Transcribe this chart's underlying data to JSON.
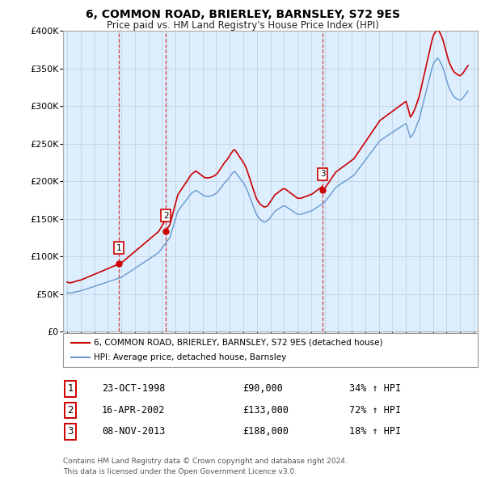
{
  "title": "6, COMMON ROAD, BRIERLEY, BARNSLEY, S72 9ES",
  "subtitle": "Price paid vs. HM Land Registry's House Price Index (HPI)",
  "legend_line1": "6, COMMON ROAD, BRIERLEY, BARNSLEY, S72 9ES (detached house)",
  "legend_line2": "HPI: Average price, detached house, Barnsley",
  "footer1": "Contains HM Land Registry data © Crown copyright and database right 2024.",
  "footer2": "This data is licensed under the Open Government Licence v3.0.",
  "sales": [
    {
      "num": 1,
      "date": "23-OCT-1998",
      "price": 90000,
      "hpi_pct": "34% ↑ HPI",
      "year": 1998.81
    },
    {
      "num": 2,
      "date": "16-APR-2002",
      "price": 133000,
      "hpi_pct": "72% ↑ HPI",
      "year": 2002.29
    },
    {
      "num": 3,
      "date": "08-NOV-2013",
      "price": 188000,
      "hpi_pct": "18% ↑ HPI",
      "year": 2013.85
    }
  ],
  "ylim": [
    0,
    400000
  ],
  "yticks": [
    0,
    50000,
    100000,
    150000,
    200000,
    250000,
    300000,
    350000,
    400000
  ],
  "ytick_labels": [
    "£0",
    "£50K",
    "£100K",
    "£150K",
    "£200K",
    "£250K",
    "£300K",
    "£350K",
    "£400K"
  ],
  "hpi_color": "#6699cc",
  "price_color": "#cc0000",
  "sale_dot_color": "#cc0000",
  "chart_bg_color": "#ddeeff",
  "background_color": "#ffffff",
  "grid_color": "#bbccdd",
  "xticks": [
    1995,
    1996,
    1997,
    1998,
    1999,
    2000,
    2001,
    2002,
    2003,
    2004,
    2005,
    2006,
    2007,
    2008,
    2009,
    2010,
    2011,
    2012,
    2013,
    2014,
    2015,
    2016,
    2017,
    2018,
    2019,
    2020,
    2021,
    2022,
    2023,
    2024,
    2025
  ],
  "xlim": [
    1994.7,
    2025.3
  ],
  "hpi_years": [
    1995.0,
    1995.083,
    1995.167,
    1995.25,
    1995.333,
    1995.417,
    1995.5,
    1995.583,
    1995.667,
    1995.75,
    1995.833,
    1995.917,
    1996.0,
    1996.083,
    1996.167,
    1996.25,
    1996.333,
    1996.417,
    1996.5,
    1996.583,
    1996.667,
    1996.75,
    1996.833,
    1996.917,
    1997.0,
    1997.083,
    1997.167,
    1997.25,
    1997.333,
    1997.417,
    1997.5,
    1997.583,
    1997.667,
    1997.75,
    1997.833,
    1997.917,
    1998.0,
    1998.083,
    1998.167,
    1998.25,
    1998.333,
    1998.417,
    1998.5,
    1998.583,
    1998.667,
    1998.75,
    1998.833,
    1998.917,
    1999.0,
    1999.083,
    1999.167,
    1999.25,
    1999.333,
    1999.417,
    1999.5,
    1999.583,
    1999.667,
    1999.75,
    1999.833,
    1999.917,
    2000.0,
    2000.083,
    2000.167,
    2000.25,
    2000.333,
    2000.417,
    2000.5,
    2000.583,
    2000.667,
    2000.75,
    2000.833,
    2000.917,
    2001.0,
    2001.083,
    2001.167,
    2001.25,
    2001.333,
    2001.417,
    2001.5,
    2001.583,
    2001.667,
    2001.75,
    2001.833,
    2001.917,
    2002.0,
    2002.083,
    2002.167,
    2002.25,
    2002.333,
    2002.417,
    2002.5,
    2002.583,
    2002.667,
    2002.75,
    2002.833,
    2002.917,
    2003.0,
    2003.083,
    2003.167,
    2003.25,
    2003.333,
    2003.417,
    2003.5,
    2003.583,
    2003.667,
    2003.75,
    2003.833,
    2003.917,
    2004.0,
    2004.083,
    2004.167,
    2004.25,
    2004.333,
    2004.417,
    2004.5,
    2004.583,
    2004.667,
    2004.75,
    2004.833,
    2004.917,
    2005.0,
    2005.083,
    2005.167,
    2005.25,
    2005.333,
    2005.417,
    2005.5,
    2005.583,
    2005.667,
    2005.75,
    2005.833,
    2005.917,
    2006.0,
    2006.083,
    2006.167,
    2006.25,
    2006.333,
    2006.417,
    2006.5,
    2006.583,
    2006.667,
    2006.75,
    2006.833,
    2006.917,
    2007.0,
    2007.083,
    2007.167,
    2007.25,
    2007.333,
    2007.417,
    2007.5,
    2007.583,
    2007.667,
    2007.75,
    2007.833,
    2007.917,
    2008.0,
    2008.083,
    2008.167,
    2008.25,
    2008.333,
    2008.417,
    2008.5,
    2008.583,
    2008.667,
    2008.75,
    2008.833,
    2008.917,
    2009.0,
    2009.083,
    2009.167,
    2009.25,
    2009.333,
    2009.417,
    2009.5,
    2009.583,
    2009.667,
    2009.75,
    2009.833,
    2009.917,
    2010.0,
    2010.083,
    2010.167,
    2010.25,
    2010.333,
    2010.417,
    2010.5,
    2010.583,
    2010.667,
    2010.75,
    2010.833,
    2010.917,
    2011.0,
    2011.083,
    2011.167,
    2011.25,
    2011.333,
    2011.417,
    2011.5,
    2011.583,
    2011.667,
    2011.75,
    2011.833,
    2011.917,
    2012.0,
    2012.083,
    2012.167,
    2012.25,
    2012.333,
    2012.417,
    2012.5,
    2012.583,
    2012.667,
    2012.75,
    2012.833,
    2012.917,
    2013.0,
    2013.083,
    2013.167,
    2013.25,
    2013.333,
    2013.417,
    2013.5,
    2013.583,
    2013.667,
    2013.75,
    2013.833,
    2013.917,
    2014.0,
    2014.083,
    2014.167,
    2014.25,
    2014.333,
    2014.417,
    2014.5,
    2014.583,
    2014.667,
    2014.75,
    2014.833,
    2014.917,
    2015.0,
    2015.083,
    2015.167,
    2015.25,
    2015.333,
    2015.417,
    2015.5,
    2015.583,
    2015.667,
    2015.75,
    2015.833,
    2015.917,
    2016.0,
    2016.083,
    2016.167,
    2016.25,
    2016.333,
    2016.417,
    2016.5,
    2016.583,
    2016.667,
    2016.75,
    2016.833,
    2016.917,
    2017.0,
    2017.083,
    2017.167,
    2017.25,
    2017.333,
    2017.417,
    2017.5,
    2017.583,
    2017.667,
    2017.75,
    2017.833,
    2017.917,
    2018.0,
    2018.083,
    2018.167,
    2018.25,
    2018.333,
    2018.417,
    2018.5,
    2018.583,
    2018.667,
    2018.75,
    2018.833,
    2018.917,
    2019.0,
    2019.083,
    2019.167,
    2019.25,
    2019.333,
    2019.417,
    2019.5,
    2019.583,
    2019.667,
    2019.75,
    2019.833,
    2019.917,
    2020.0,
    2020.083,
    2020.167,
    2020.25,
    2020.333,
    2020.417,
    2020.5,
    2020.583,
    2020.667,
    2020.75,
    2020.833,
    2020.917,
    2021.0,
    2021.083,
    2021.167,
    2021.25,
    2021.333,
    2021.417,
    2021.5,
    2021.583,
    2021.667,
    2021.75,
    2021.833,
    2021.917,
    2022.0,
    2022.083,
    2022.167,
    2022.25,
    2022.333,
    2022.417,
    2022.5,
    2022.583,
    2022.667,
    2022.75,
    2022.833,
    2022.917,
    2023.0,
    2023.083,
    2023.167,
    2023.25,
    2023.333,
    2023.417,
    2023.5,
    2023.583,
    2023.667,
    2023.75,
    2023.833,
    2023.917,
    2024.0,
    2024.083,
    2024.167,
    2024.25,
    2024.333,
    2024.417,
    2024.5,
    2024.583
  ],
  "hpi_vals": [
    52000,
    51500,
    51000,
    51200,
    51500,
    51800,
    52000,
    52500,
    53000,
    53200,
    53500,
    53800,
    54000,
    54500,
    55000,
    55500,
    56000,
    56500,
    57000,
    57500,
    58000,
    58500,
    59000,
    59500,
    60000,
    60500,
    61000,
    61500,
    62000,
    62500,
    63000,
    63500,
    64000,
    64500,
    65000,
    65500,
    66000,
    66500,
    67000,
    67500,
    68000,
    68500,
    69000,
    69500,
    70000,
    70500,
    71000,
    71500,
    72000,
    73000,
    74000,
    75000,
    76000,
    77000,
    78000,
    79000,
    80000,
    81000,
    82000,
    83000,
    84000,
    85000,
    86000,
    87000,
    88000,
    89000,
    90000,
    91000,
    92000,
    93000,
    94000,
    95000,
    96000,
    97000,
    98000,
    99000,
    100000,
    101000,
    102000,
    103000,
    104000,
    105000,
    107000,
    109000,
    111000,
    113000,
    115000,
    117000,
    119000,
    121000,
    123000,
    125000,
    130000,
    135000,
    140000,
    145000,
    150000,
    155000,
    160000,
    162000,
    164000,
    166000,
    168000,
    170000,
    172000,
    174000,
    176000,
    178000,
    180000,
    182000,
    184000,
    185000,
    186000,
    187000,
    188000,
    187000,
    186000,
    185000,
    184000,
    183000,
    182000,
    181000,
    180000,
    180000,
    180000,
    180000,
    180000,
    180500,
    181000,
    181500,
    182000,
    183000,
    184000,
    185000,
    187000,
    189000,
    191000,
    193000,
    195000,
    197000,
    199000,
    200000,
    202000,
    204000,
    206000,
    208000,
    210000,
    212000,
    213000,
    212000,
    210000,
    208000,
    206000,
    204000,
    202000,
    200000,
    198000,
    196000,
    193000,
    190000,
    186000,
    182000,
    178000,
    174000,
    170000,
    166000,
    162000,
    158000,
    155000,
    153000,
    151000,
    149000,
    148000,
    147000,
    146000,
    146000,
    146000,
    147000,
    148000,
    150000,
    152000,
    154000,
    156000,
    158000,
    160000,
    161000,
    162000,
    163000,
    164000,
    165000,
    166000,
    167000,
    167000,
    167000,
    166000,
    165000,
    164000,
    163000,
    162000,
    161000,
    160000,
    159000,
    158000,
    157000,
    156000,
    156000,
    156000,
    156000,
    156500,
    157000,
    157500,
    158000,
    158500,
    159000,
    159500,
    160000,
    160500,
    161000,
    162000,
    163000,
    164000,
    165000,
    166000,
    167000,
    168000,
    169000,
    170000,
    171000,
    172000,
    174000,
    176000,
    178000,
    180000,
    182000,
    184000,
    186000,
    188000,
    190000,
    192000,
    193000,
    194000,
    195000,
    196000,
    197000,
    198000,
    199000,
    200000,
    201000,
    202000,
    203000,
    204000,
    205000,
    206000,
    207000,
    208000,
    210000,
    212000,
    214000,
    216000,
    218000,
    220000,
    222000,
    224000,
    226000,
    228000,
    230000,
    232000,
    234000,
    236000,
    238000,
    240000,
    242000,
    244000,
    246000,
    248000,
    250000,
    252000,
    254000,
    255000,
    256000,
    257000,
    258000,
    259000,
    260000,
    261000,
    262000,
    263000,
    264000,
    265000,
    266000,
    267000,
    268000,
    269000,
    270000,
    271000,
    272000,
    273000,
    274000,
    275000,
    276000,
    277000,
    273000,
    268000,
    263000,
    258000,
    260000,
    262000,
    265000,
    268000,
    272000,
    276000,
    280000,
    284000,
    290000,
    296000,
    302000,
    308000,
    314000,
    320000,
    326000,
    332000,
    338000,
    344000,
    350000,
    355000,
    358000,
    360000,
    362000,
    364000,
    362000,
    360000,
    357000,
    354000,
    350000,
    345000,
    340000,
    335000,
    330000,
    325000,
    322000,
    319000,
    316000,
    314000,
    312000,
    311000,
    310000,
    309000,
    308000,
    308000,
    309000,
    310000,
    312000,
    314000,
    316000,
    318000,
    320000
  ]
}
